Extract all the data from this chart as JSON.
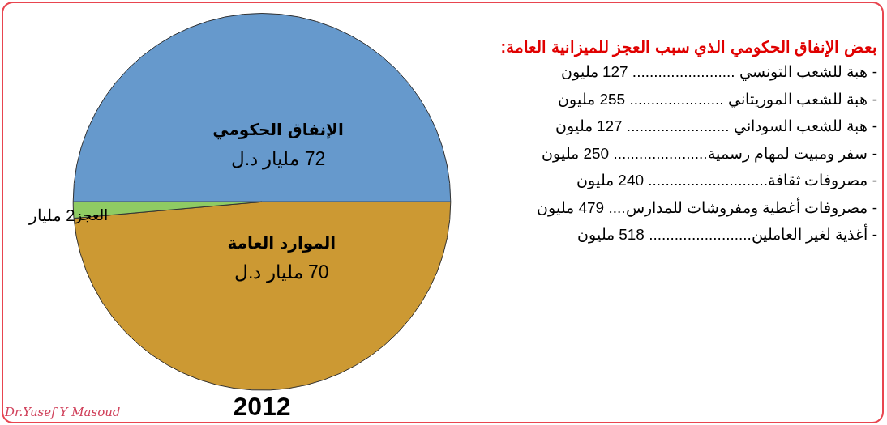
{
  "chart_data": {
    "type": "pie",
    "title": "2012",
    "categories": [
      "الإنفاق الحكومي",
      "الموارد العامة",
      "العجز"
    ],
    "values": [
      72,
      70,
      2
    ],
    "value_labels": [
      "72 مليار د.ل",
      "70 مليار د.ل",
      "2 مليار"
    ],
    "colors": [
      "#6699cc",
      "#cc9933",
      "#8fcb63"
    ],
    "legend": false,
    "annotations": [
      "بعض الإنفاق الحكومي الذي سبب العجز للميزانية العامة:",
      "- هبة للشعب التونسي ........................ 127 مليون",
      "- هبة للشعب الموريتاني ...................... 255 مليون",
      "- هبة للشعب السوداني ........................ 127 مليون",
      "- سفر ومبيت لمهام رسمية...................... 250 مليون",
      "- مصروفات ثقافة............................ 240 مليون",
      "- مصروفات أغطية ومفروشات للمدارس.... 479 مليون",
      "- أغذية لغير العاملين........................ 518 مليون",
      "Dr.Yusef Y Masoud"
    ]
  }
}
